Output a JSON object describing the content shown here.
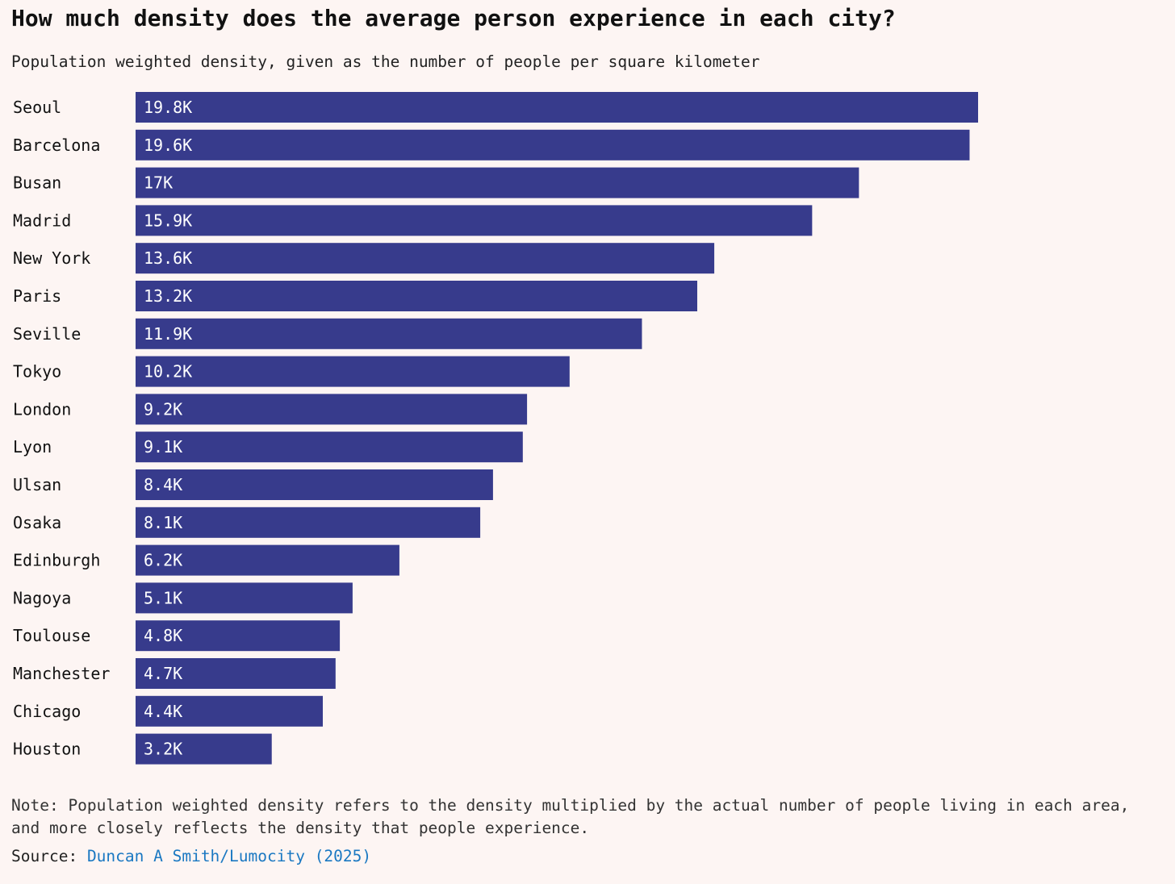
{
  "title": "How much density does the average person experience in each city?",
  "subtitle": "Population weighted density, given as the number of people per square kilometer",
  "note": "Note: Population weighted density refers to the density multiplied by the actual number of people living in each area, and more closely reflects the density that people experience.",
  "source": {
    "prefix": "Source:",
    "link_text": "Duncan A Smith/Lumocity (2025)"
  },
  "colors": {
    "bar": "#373b8c",
    "background": "#fdf5f3",
    "link": "#1a78c2"
  },
  "chart_data": {
    "type": "bar",
    "orientation": "horizontal",
    "categories": [
      "Seoul",
      "Barcelona",
      "Busan",
      "Madrid",
      "New York",
      "Paris",
      "Seville",
      "Tokyo",
      "London",
      "Lyon",
      "Ulsan",
      "Osaka",
      "Edinburgh",
      "Nagoya",
      "Toulouse",
      "Manchester",
      "Chicago",
      "Houston"
    ],
    "values": [
      19800,
      19600,
      17000,
      15900,
      13600,
      13200,
      11900,
      10200,
      9200,
      9100,
      8400,
      8100,
      6200,
      5100,
      4800,
      4700,
      4400,
      3200
    ],
    "labels": [
      "19.8K",
      "19.6K",
      "17K",
      "15.9K",
      "13.6K",
      "13.2K",
      "11.9K",
      "10.2K",
      "9.2K",
      "9.1K",
      "8.4K",
      "8.1K",
      "6.2K",
      "5.1K",
      "4.8K",
      "4.7K",
      "4.4K",
      "3.2K"
    ],
    "xlim": [
      0,
      19800
    ],
    "grid": false,
    "legend": false
  }
}
